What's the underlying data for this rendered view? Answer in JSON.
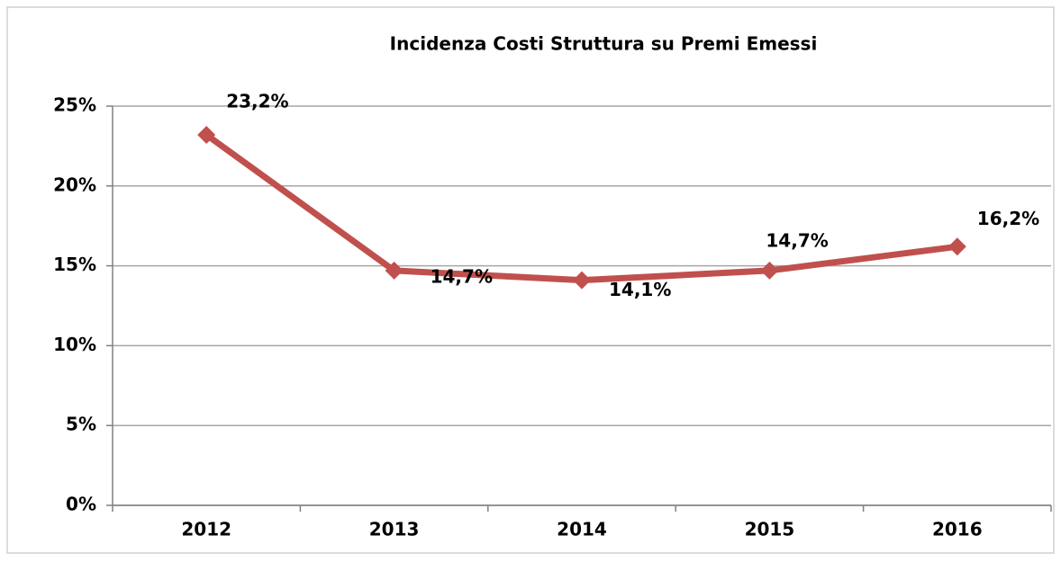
{
  "chart_data": {
    "type": "line",
    "title": "Incidenza Costi Struttura su Premi Emessi",
    "categories": [
      "2012",
      "2013",
      "2014",
      "2015",
      "2016"
    ],
    "values": [
      23.2,
      14.7,
      14.1,
      14.7,
      16.2
    ],
    "value_labels": [
      "23,2%",
      "14,7%",
      "14,1%",
      "14,7%",
      "16,2%"
    ],
    "color": "#c0504d",
    "ylim": [
      0,
      25
    ],
    "yticks": [
      {
        "value": 0,
        "label": "0%"
      },
      {
        "value": 5,
        "label": "5%"
      },
      {
        "value": 10,
        "label": "10%"
      },
      {
        "value": 15,
        "label": "15%"
      },
      {
        "value": 20,
        "label": "20%"
      },
      {
        "value": 25,
        "label": "25%"
      }
    ],
    "grid": true
  }
}
